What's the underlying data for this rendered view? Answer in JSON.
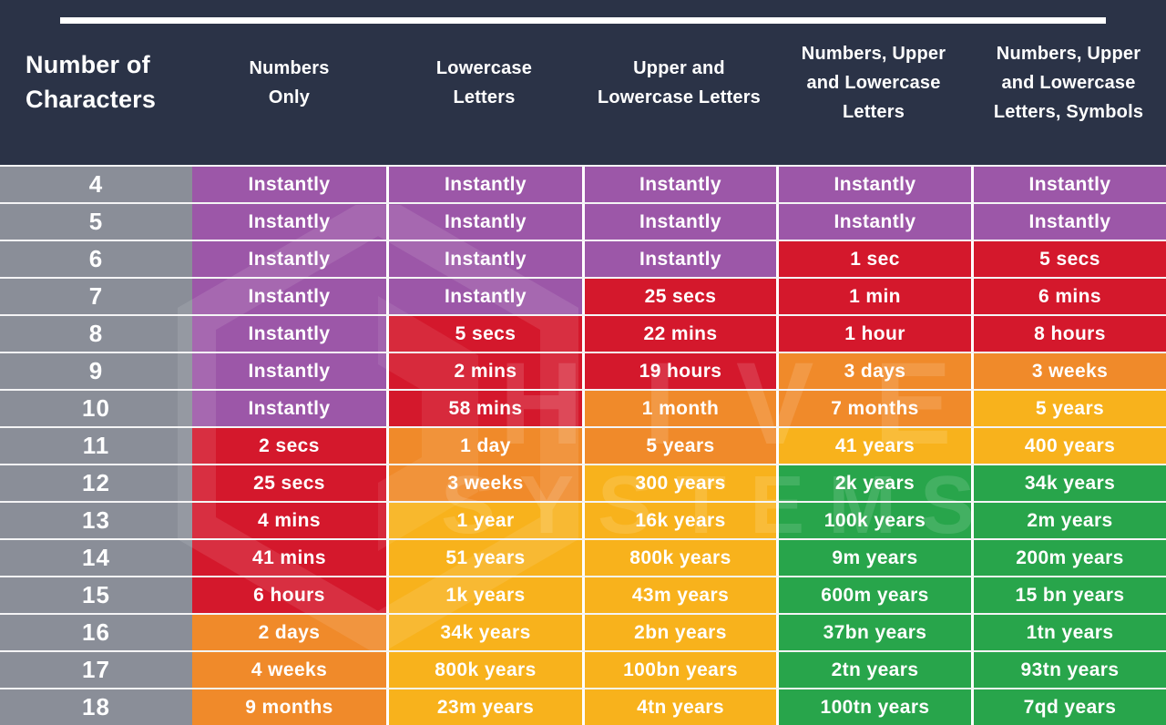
{
  "colors": {
    "background": "#2B3347",
    "row_label_bg": "#8A8E98",
    "purple": "#9C57A8",
    "red": "#D4182C",
    "orange": "#F08A2A",
    "yellow": "#F8B21C",
    "green": "#28A54B",
    "divider": "#FFFFFF",
    "text": "#FFFFFF"
  },
  "watermark": {
    "line1": "HIVE",
    "line2": "SYSTEMS"
  },
  "chart_data": {
    "type": "table",
    "columns": [
      "Number of Characters",
      "Numbers Only",
      "Lowercase Letters",
      "Upper and Lowercase Letters",
      "Numbers, Upper and Lowercase Letters",
      "Numbers, Upper and Lowercase Letters, Symbols"
    ],
    "color_meaning_note": "cell color encodes time-to-crack severity: purple=instant, red=very fast, orange=fast, yellow=slow, green=very slow",
    "rows": [
      {
        "label": "4",
        "cells": [
          {
            "text": "Instantly",
            "color": "purple"
          },
          {
            "text": "Instantly",
            "color": "purple"
          },
          {
            "text": "Instantly",
            "color": "purple"
          },
          {
            "text": "Instantly",
            "color": "purple"
          },
          {
            "text": "Instantly",
            "color": "purple"
          }
        ]
      },
      {
        "label": "5",
        "cells": [
          {
            "text": "Instantly",
            "color": "purple"
          },
          {
            "text": "Instantly",
            "color": "purple"
          },
          {
            "text": "Instantly",
            "color": "purple"
          },
          {
            "text": "Instantly",
            "color": "purple"
          },
          {
            "text": "Instantly",
            "color": "purple"
          }
        ]
      },
      {
        "label": "6",
        "cells": [
          {
            "text": "Instantly",
            "color": "purple"
          },
          {
            "text": "Instantly",
            "color": "purple"
          },
          {
            "text": "Instantly",
            "color": "purple"
          },
          {
            "text": "1 sec",
            "color": "red"
          },
          {
            "text": "5 secs",
            "color": "red"
          }
        ]
      },
      {
        "label": "7",
        "cells": [
          {
            "text": "Instantly",
            "color": "purple"
          },
          {
            "text": "Instantly",
            "color": "purple"
          },
          {
            "text": "25 secs",
            "color": "red"
          },
          {
            "text": "1 min",
            "color": "red"
          },
          {
            "text": "6 mins",
            "color": "red"
          }
        ]
      },
      {
        "label": "8",
        "cells": [
          {
            "text": "Instantly",
            "color": "purple"
          },
          {
            "text": "5 secs",
            "color": "red"
          },
          {
            "text": "22 mins",
            "color": "red"
          },
          {
            "text": "1 hour",
            "color": "red"
          },
          {
            "text": "8 hours",
            "color": "red"
          }
        ]
      },
      {
        "label": "9",
        "cells": [
          {
            "text": "Instantly",
            "color": "purple"
          },
          {
            "text": "2 mins",
            "color": "red"
          },
          {
            "text": "19 hours",
            "color": "red"
          },
          {
            "text": "3 days",
            "color": "orange"
          },
          {
            "text": "3 weeks",
            "color": "orange"
          }
        ]
      },
      {
        "label": "10",
        "cells": [
          {
            "text": "Instantly",
            "color": "purple"
          },
          {
            "text": "58 mins",
            "color": "red"
          },
          {
            "text": "1 month",
            "color": "orange"
          },
          {
            "text": "7 months",
            "color": "orange"
          },
          {
            "text": "5 years",
            "color": "yellow"
          }
        ]
      },
      {
        "label": "11",
        "cells": [
          {
            "text": "2 secs",
            "color": "red"
          },
          {
            "text": "1 day",
            "color": "orange"
          },
          {
            "text": "5 years",
            "color": "orange"
          },
          {
            "text": "41 years",
            "color": "yellow"
          },
          {
            "text": "400 years",
            "color": "yellow"
          }
        ]
      },
      {
        "label": "12",
        "cells": [
          {
            "text": "25 secs",
            "color": "red"
          },
          {
            "text": "3 weeks",
            "color": "orange"
          },
          {
            "text": "300 years",
            "color": "yellow"
          },
          {
            "text": "2k years",
            "color": "green"
          },
          {
            "text": "34k years",
            "color": "green"
          }
        ]
      },
      {
        "label": "13",
        "cells": [
          {
            "text": "4 mins",
            "color": "red"
          },
          {
            "text": "1 year",
            "color": "yellow"
          },
          {
            "text": "16k years",
            "color": "yellow"
          },
          {
            "text": "100k years",
            "color": "green"
          },
          {
            "text": "2m years",
            "color": "green"
          }
        ]
      },
      {
        "label": "14",
        "cells": [
          {
            "text": "41 mins",
            "color": "red"
          },
          {
            "text": "51 years",
            "color": "yellow"
          },
          {
            "text": "800k years",
            "color": "yellow"
          },
          {
            "text": "9m years",
            "color": "green"
          },
          {
            "text": "200m years",
            "color": "green"
          }
        ]
      },
      {
        "label": "15",
        "cells": [
          {
            "text": "6 hours",
            "color": "red"
          },
          {
            "text": "1k years",
            "color": "yellow"
          },
          {
            "text": "43m years",
            "color": "yellow"
          },
          {
            "text": "600m years",
            "color": "green"
          },
          {
            "text": "15 bn years",
            "color": "green"
          }
        ]
      },
      {
        "label": "16",
        "cells": [
          {
            "text": "2 days",
            "color": "orange"
          },
          {
            "text": "34k years",
            "color": "yellow"
          },
          {
            "text": "2bn years",
            "color": "yellow"
          },
          {
            "text": "37bn years",
            "color": "green"
          },
          {
            "text": "1tn years",
            "color": "green"
          }
        ]
      },
      {
        "label": "17",
        "cells": [
          {
            "text": "4 weeks",
            "color": "orange"
          },
          {
            "text": "800k years",
            "color": "yellow"
          },
          {
            "text": "100bn years",
            "color": "yellow"
          },
          {
            "text": "2tn years",
            "color": "green"
          },
          {
            "text": "93tn years",
            "color": "green"
          }
        ]
      },
      {
        "label": "18",
        "cells": [
          {
            "text": "9 months",
            "color": "orange"
          },
          {
            "text": "23m years",
            "color": "yellow"
          },
          {
            "text": "4tn years",
            "color": "yellow"
          },
          {
            "text": "100tn years",
            "color": "green"
          },
          {
            "text": "7qd years",
            "color": "green"
          }
        ]
      }
    ]
  }
}
